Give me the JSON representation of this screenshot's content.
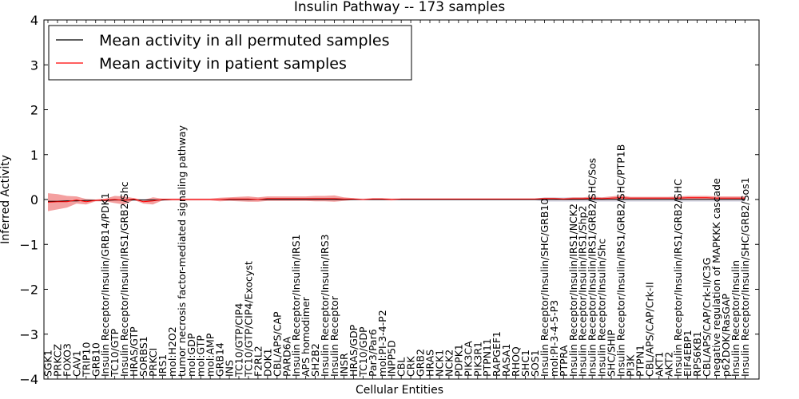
{
  "chart_data": {
    "type": "line",
    "title": "Insulin Pathway -- 173 samples",
    "xlabel": "Cellular Entities",
    "ylabel": "Inferred Activity",
    "ylim": [
      -4,
      4
    ],
    "yticks": [
      -4,
      -3,
      -2,
      -1,
      0,
      1,
      2,
      3,
      4
    ],
    "ytick_labels": [
      "−4",
      "−3",
      "−2",
      "−1",
      "0",
      "1",
      "2",
      "3",
      "4"
    ],
    "legend_position": "top-left",
    "colors": {
      "permuted": "#000000",
      "patient": "#ff0000",
      "patient_band": "#f08080",
      "permuted_band": "#c8c8dc"
    },
    "categories": [
      "SGK1",
      "PRKCZ",
      "FOXO3",
      "CAV1",
      "TRIP10",
      "GRB10",
      "Insulin Receptor/Insulin/GRB14/PDK1",
      "TC10/GTP",
      "Insulin Receptor/Insulin/IRS1/GRB2/Shc",
      "HRAS/GTP",
      "SORBS1",
      "PRKCI",
      "IRS1",
      "mol:H2O2",
      "tumor necrosis factor-mediated signaling pathway",
      "mol:GDP",
      "mol:GTP",
      "mol:AMP",
      "GRB14",
      "INS",
      "TC10/GTP/CIP4",
      "TC10/GTP/CIP4/Exocyst",
      "F2RL2",
      "DOK1",
      "CBL/APS/CAP",
      "PARD6A",
      "Insulin Receptor/Insulin/IRS1",
      "APS homodimer",
      "SH2B2",
      "Insulin Receptor/Insulin/IRS3",
      "Insulin Receptor",
      "INSR",
      "HRAS/GDP",
      "TC10/GDP",
      "Par3/Par6",
      "mol:PI-3-4-P2",
      "INPP5D",
      "CBL",
      "CRK",
      "GRB2",
      "HRAS",
      "NCK1",
      "NCK2",
      "PDPK1",
      "PIK3CA",
      "PIK3R1",
      "PTPN11",
      "RAPGEF1",
      "RASA1",
      "RHOQ",
      "SHC1",
      "SOS1",
      "Insulin Receptor/Insulin/SHC/GRB10",
      "mol:PI-3-4-5-P3",
      "PTPRA",
      "Insulin Receptor/Insulin/IRS1/NCK2",
      "Insulin Receptor/Insulin/IRS1/Shp2",
      "Insulin Receptor/Insulin/IRS1/GRB2/SHC/Sos",
      "Insulin Receptor/Insulin/Shc",
      "SHC/SHIP",
      "Insulin Receptor/Insulin/IRS1/GRB2/SHC/PTP1B",
      "PI3K",
      "PTPN1",
      "CBL/APS/CAP/Crk-II",
      "AKT1",
      "AKT2",
      "Insulin Receptor/Insulin/IRS1/GRB2/SHC",
      "EIF4EBP1",
      "RPS6KB1",
      "CBL/APS/CAP/Crk-II/C3G",
      "negative regulation of MAPKKK cascade",
      "p62DOK/RasGAP",
      "Insulin Receptor/Insulin",
      "Insulin Receptor/Insulin/SHC/GRB2/Sos1"
    ],
    "series": [
      {
        "name": "Mean activity in all permuted samples",
        "values": [
          -0.04,
          -0.04,
          -0.03,
          -0.03,
          -0.02,
          -0.02,
          -0.02,
          -0.01,
          -0.01,
          -0.01,
          -0.01,
          -0.01,
          -0.01,
          0,
          0,
          0,
          0,
          0,
          0,
          0,
          0,
          0,
          0,
          0,
          0,
          0,
          0,
          0,
          0,
          0,
          0,
          0,
          0,
          0,
          0,
          0,
          0,
          0,
          0,
          0,
          0,
          0,
          0,
          0,
          0,
          0,
          0,
          0,
          0,
          0,
          0,
          0,
          0,
          0,
          0,
          0,
          0,
          0,
          0,
          0,
          0,
          0,
          0,
          0,
          0,
          0,
          0,
          0,
          0,
          0,
          0,
          0,
          0,
          0
        ],
        "band": [
          0.02,
          0.02,
          0.02,
          0.02,
          0.02,
          0.02,
          0.02,
          0.02,
          0.02,
          0.02,
          0.02,
          0.02,
          0.02,
          0.02,
          0.02,
          0.02,
          0.02,
          0.02,
          0.02,
          0.02,
          0.02,
          0.02,
          0.02,
          0.02,
          0.02,
          0.02,
          0.02,
          0.02,
          0.02,
          0.02,
          0.02,
          0.02,
          0.02,
          0.02,
          0.02,
          0.02,
          0.02,
          0.02,
          0.02,
          0.02,
          0.02,
          0.02,
          0.02,
          0.02,
          0.02,
          0.02,
          0.02,
          0.02,
          0.02,
          0.02,
          0.02,
          0.02,
          0.05,
          0.05,
          0.05,
          0.05,
          0.05,
          0.05,
          0.05,
          0.05,
          0.05,
          0.05,
          0.05,
          0.05,
          0.05,
          0.05,
          0.05,
          0.05,
          0.05,
          0.05,
          0.05,
          0.05,
          0.05,
          0.05
        ]
      },
      {
        "name": "Mean activity in patient samples",
        "values": [
          -0.06,
          -0.05,
          -0.05,
          -0.01,
          -0.05,
          -0.02,
          -0.01,
          0,
          -0.02,
          0.01,
          -0.05,
          -0.03,
          0,
          0,
          0,
          0,
          0,
          0,
          0,
          0.01,
          0.01,
          0.01,
          0,
          0.02,
          0.02,
          0.02,
          0.02,
          0.02,
          0.02,
          0.02,
          0.02,
          0.01,
          0.01,
          0,
          0.01,
          0.01,
          0,
          0.01,
          0.01,
          0.01,
          0.01,
          0.01,
          0.01,
          0.01,
          0.01,
          0.01,
          0.01,
          0.01,
          0.01,
          0.01,
          0.01,
          0.01,
          0.02,
          0.02,
          0.01,
          0.02,
          0.02,
          0.03,
          0.02,
          0.03,
          0.04,
          0.03,
          0.03,
          0.03,
          0.03,
          0.03,
          0.03,
          0.04,
          0.04,
          0.04,
          0.03,
          0.03,
          0.03,
          0.03
        ],
        "band": [
          0.2,
          0.17,
          0.13,
          0.08,
          0.06,
          0.02,
          0.03,
          0.08,
          0.09,
          0.02,
          0.04,
          0.08,
          0.02,
          0.02,
          0.02,
          0.02,
          0.02,
          0.02,
          0.04,
          0.04,
          0.05,
          0.06,
          0.05,
          0.05,
          0.05,
          0.05,
          0.05,
          0.05,
          0.06,
          0.06,
          0.07,
          0.04,
          0.02,
          0.01,
          0.02,
          0.02,
          0.02,
          0.01,
          0.01,
          0.01,
          0.01,
          0.01,
          0.01,
          0.01,
          0.01,
          0.01,
          0.01,
          0.01,
          0.01,
          0.01,
          0.01,
          0.01,
          0.02,
          0.02,
          0.02,
          0.03,
          0.03,
          0.04,
          0.03,
          0.04,
          0.05,
          0.03,
          0.03,
          0.03,
          0.03,
          0.03,
          0.04,
          0.04,
          0.04,
          0.04,
          0.04,
          0.04,
          0.04,
          0.04
        ]
      }
    ]
  }
}
